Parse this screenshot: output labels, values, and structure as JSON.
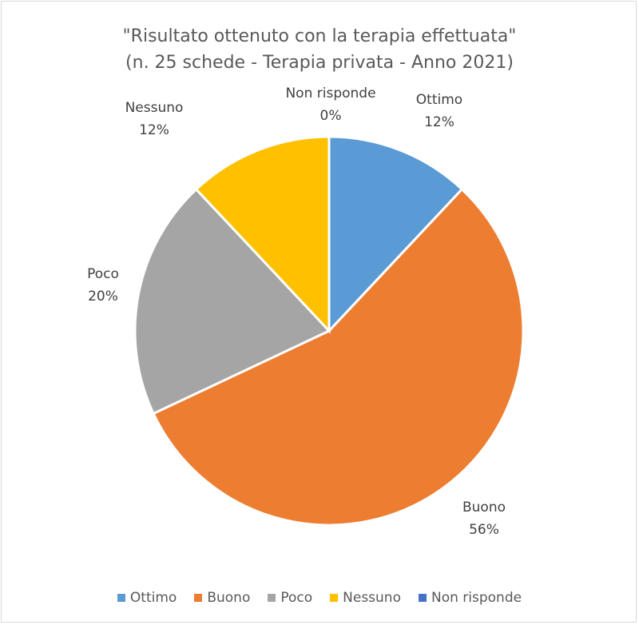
{
  "chart_data": {
    "type": "pie",
    "title": "\"Risultato ottenuto con la terapia effettuata\"",
    "subtitle": "(n. 25 schede - Terapia privata - Anno 2021)",
    "legend_position": "bottom",
    "slices": [
      {
        "name": "Ottimo",
        "value": 12,
        "label": "12%",
        "color": "#5b9bd5"
      },
      {
        "name": "Buono",
        "value": 56,
        "label": "56%",
        "color": "#ed7d31"
      },
      {
        "name": "Poco",
        "value": 20,
        "label": "20%",
        "color": "#a5a5a5"
      },
      {
        "name": "Nessuno",
        "value": 12,
        "label": "12%",
        "color": "#ffc000"
      },
      {
        "name": "Non risponde",
        "value": 0,
        "label": "0%",
        "color": "#4472c4"
      }
    ]
  }
}
